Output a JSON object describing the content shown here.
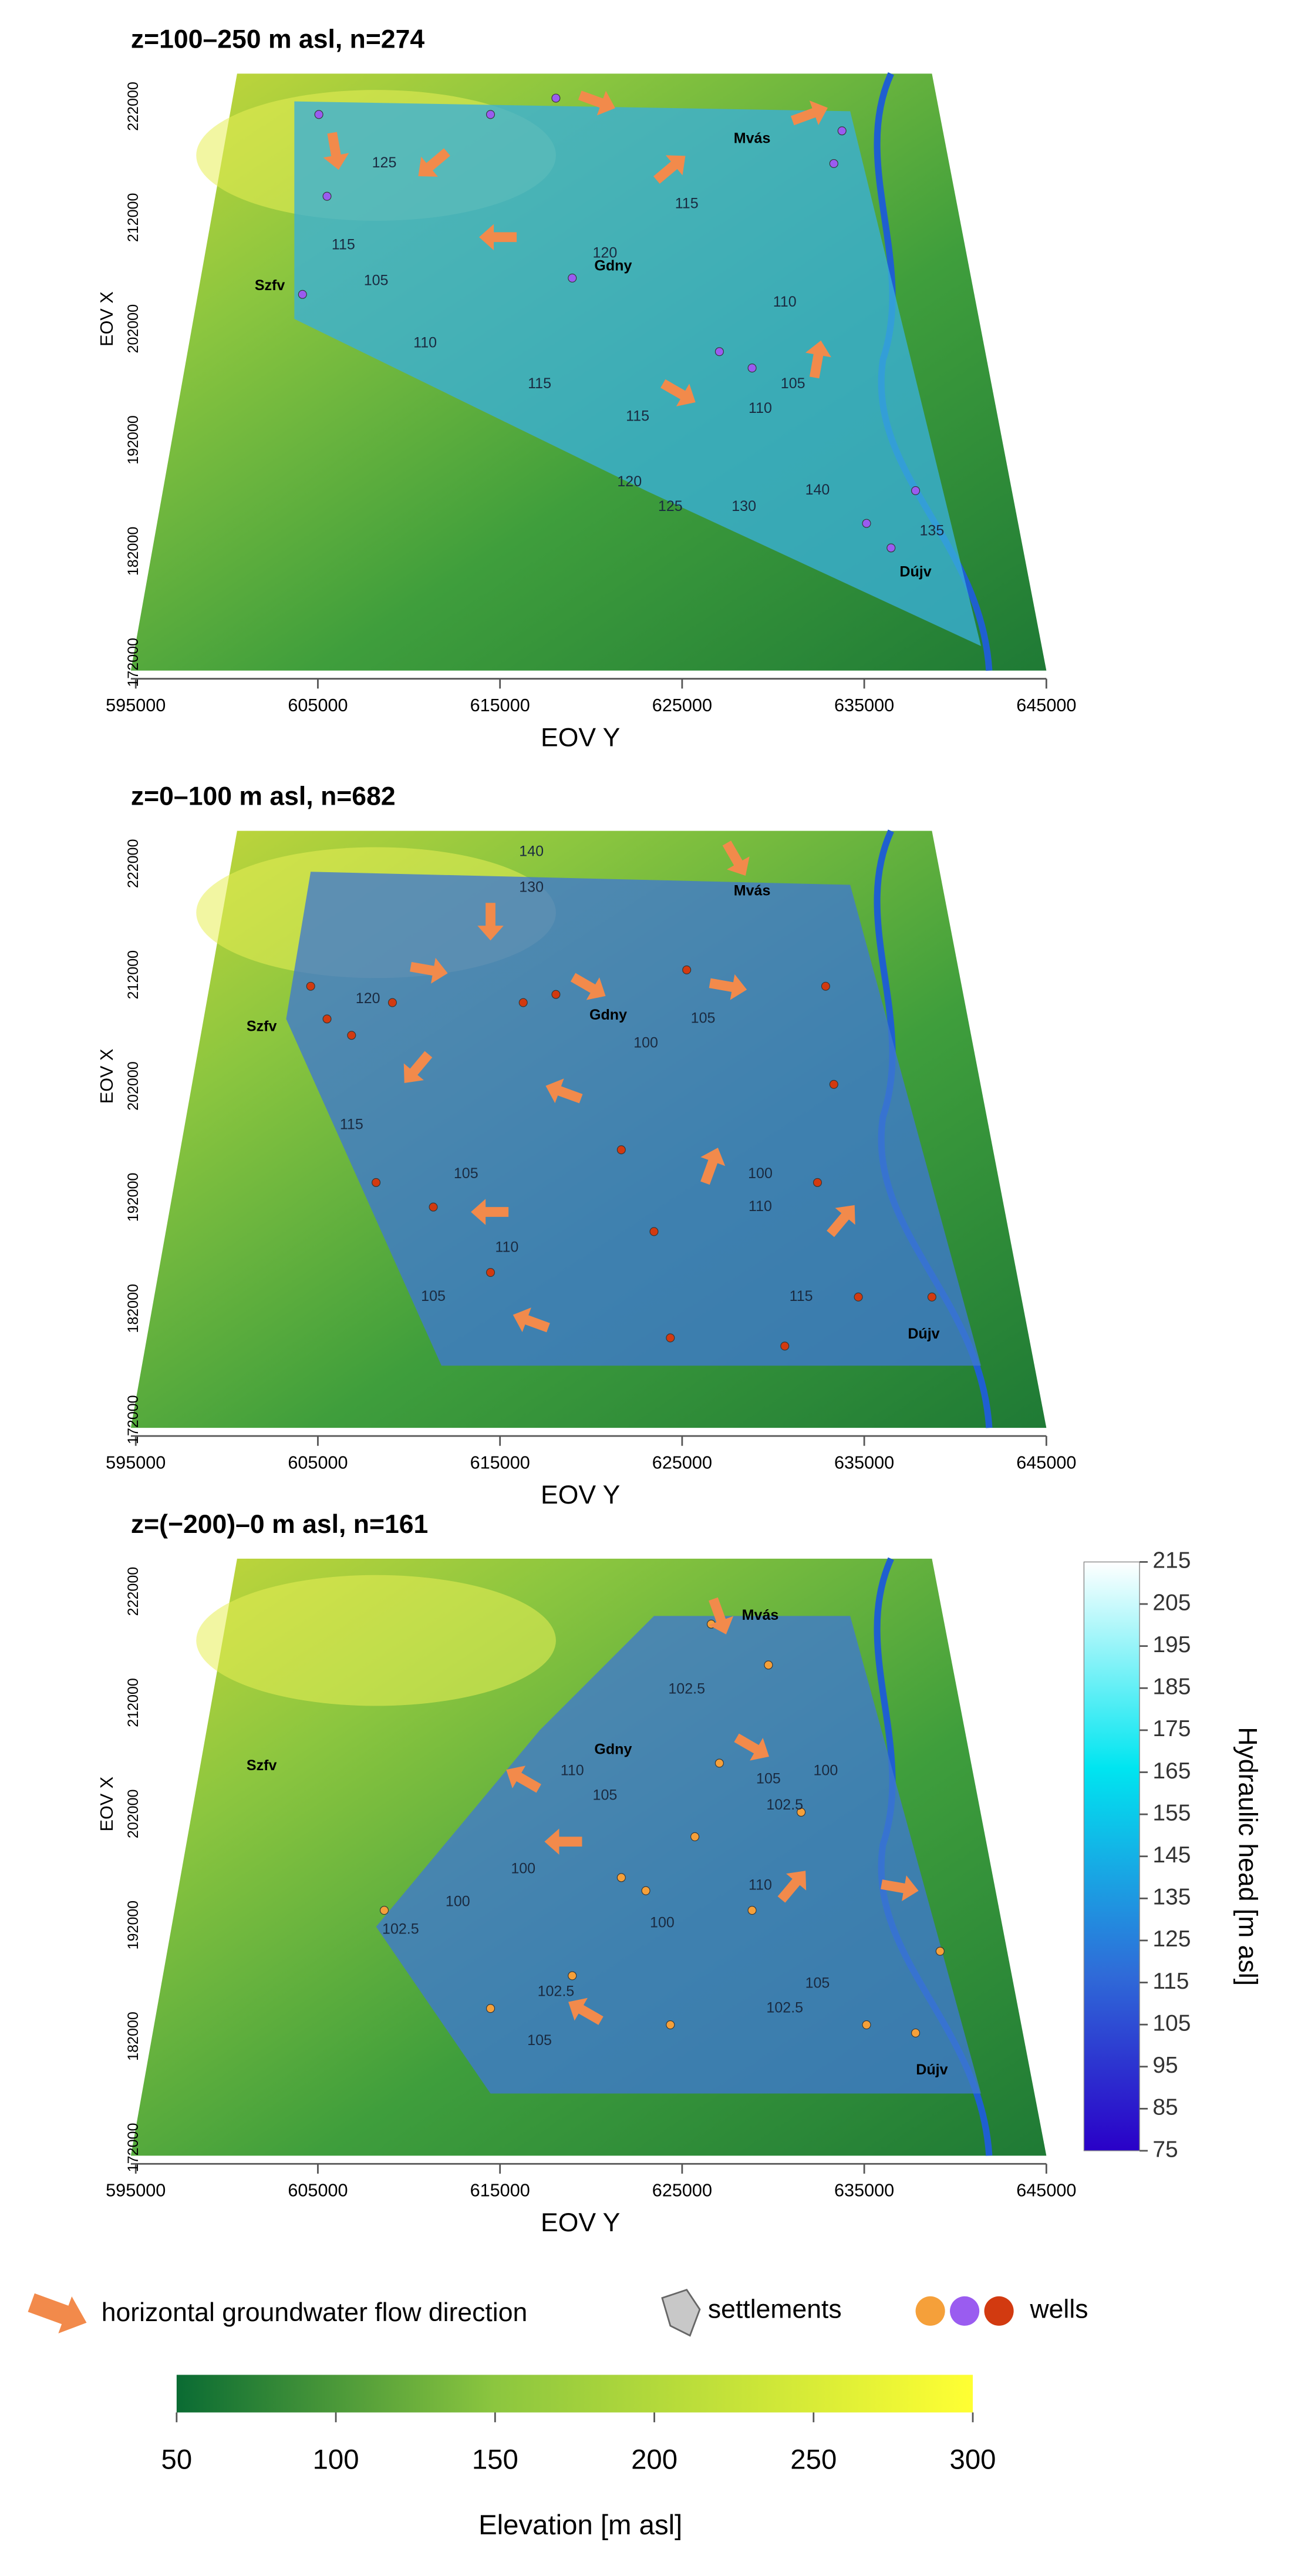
{
  "panels": [
    {
      "title": "z=100–250 m asl, n=274",
      "x_label": "EOV Y",
      "y_label": "EOV X",
      "xticks": [
        595000,
        605000,
        615000,
        625000,
        635000,
        645000
      ],
      "yticks": [
        222000,
        212000,
        202000,
        192000,
        182000,
        172000
      ],
      "places": [
        "Mvás",
        "Gdny",
        "Szfv",
        "Dújv"
      ],
      "contour_labels": [
        "125",
        "115",
        "105",
        "110",
        "115",
        "120",
        "115",
        "110",
        "105",
        "110",
        "115",
        "120",
        "125",
        "130",
        "135",
        "140"
      ]
    },
    {
      "title": "z=0–100 m asl, n=682",
      "x_label": "EOV Y",
      "y_label": "EOV X",
      "xticks": [
        595000,
        605000,
        615000,
        625000,
        635000,
        645000
      ],
      "yticks": [
        222000,
        212000,
        202000,
        192000,
        182000,
        172000
      ],
      "places": [
        "Mvás",
        "Gdny",
        "Szfv",
        "Dújv"
      ],
      "contour_labels": [
        "140",
        "130",
        "120",
        "115",
        "105",
        "110",
        "105",
        "100",
        "100",
        "110",
        "115",
        "105"
      ]
    },
    {
      "title": "z=(−200)–0 m asl, n=161",
      "x_label": "EOV Y",
      "y_label": "EOV X",
      "xticks": [
        595000,
        605000,
        615000,
        625000,
        635000,
        645000
      ],
      "yticks": [
        222000,
        212000,
        202000,
        192000,
        182000,
        172000
      ],
      "places": [
        "Mvás",
        "Gdny",
        "Szfv",
        "Dújv"
      ],
      "contour_labels": [
        "110",
        "105",
        "100",
        "100",
        "102.5",
        "100",
        "110",
        "102.5",
        "105",
        "102.5",
        "100",
        "102.5",
        "105",
        "102.5",
        "105"
      ]
    }
  ],
  "hydraulic_head": {
    "label": "Hydraulic head [m asl]",
    "ticks": [
      215,
      205,
      195,
      185,
      175,
      165,
      155,
      145,
      135,
      125,
      115,
      105,
      95,
      85,
      75
    ]
  },
  "legend": {
    "flow": "horizontal groundwater flow direction",
    "settlements": "settlements",
    "wells": "wells"
  },
  "elevation": {
    "label": "Elevation [m asl]",
    "ticks": [
      50,
      100,
      150,
      200,
      250,
      300
    ]
  }
}
